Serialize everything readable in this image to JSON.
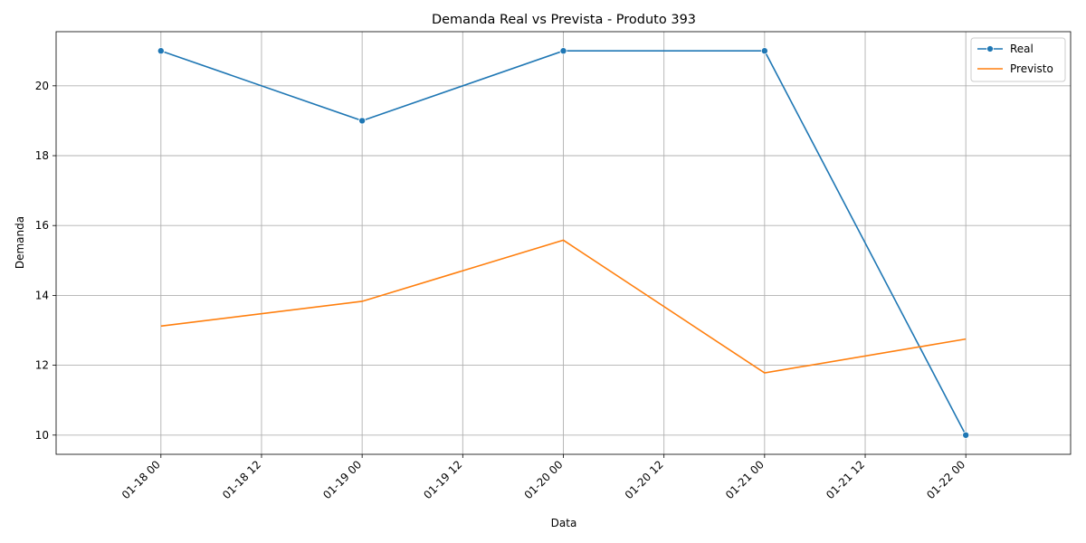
{
  "chart_data": {
    "type": "line",
    "title": "Demanda Real vs Prevista - Produto 393",
    "xlabel": "Data",
    "ylabel": "Demanda",
    "x": [
      "01-18 00",
      "01-19 00",
      "01-20 00",
      "01-21 00",
      "01-22 00"
    ],
    "x_hours": [
      0,
      24,
      48,
      72,
      96
    ],
    "x_ticks": [
      {
        "label": "01-18 00",
        "hours": 0
      },
      {
        "label": "01-18 12",
        "hours": 12
      },
      {
        "label": "01-19 00",
        "hours": 24
      },
      {
        "label": "01-19 12",
        "hours": 36
      },
      {
        "label": "01-20 00",
        "hours": 48
      },
      {
        "label": "01-20 12",
        "hours": 60
      },
      {
        "label": "01-21 00",
        "hours": 72
      },
      {
        "label": "01-21 12",
        "hours": 84
      },
      {
        "label": "01-22 00",
        "hours": 96
      }
    ],
    "y_ticks": [
      10,
      12,
      14,
      16,
      18,
      20
    ],
    "xlim_hours": [
      -12.5,
      108.5
    ],
    "ylim": [
      9.45,
      21.55
    ],
    "grid": true,
    "legend_position": "top-right",
    "series": [
      {
        "name": "Real",
        "color": "#1f77b4",
        "marker": "circle",
        "values": [
          21,
          19,
          21,
          21,
          10
        ]
      },
      {
        "name": "Previsto",
        "color": "#ff7f0e",
        "marker": "none",
        "values": [
          13.12,
          13.83,
          15.58,
          11.78,
          12.75
        ]
      }
    ]
  }
}
